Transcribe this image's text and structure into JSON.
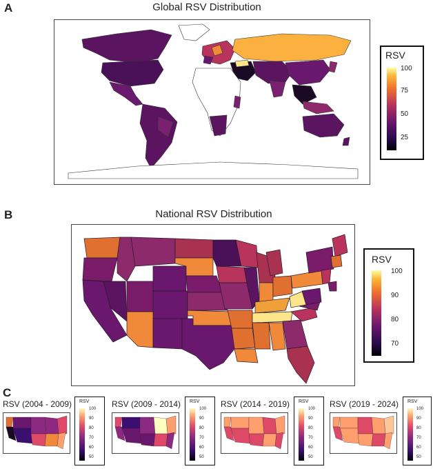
{
  "panels": {
    "a": {
      "letter": "A",
      "title": "Global RSV Distribution",
      "legend": {
        "title": "RSV",
        "ticks": [
          "100",
          "75",
          "50",
          "25"
        ]
      }
    },
    "b": {
      "letter": "B",
      "title": "National RSV Distribution",
      "legend": {
        "title": "RSV",
        "ticks": [
          "100",
          "90",
          "80",
          "70"
        ]
      }
    },
    "c": {
      "letter": "C",
      "maps": [
        {
          "title": "RSV (2004 - 2009)",
          "legend_title": "RSV",
          "ticks": [
            "100",
            "90",
            "80",
            "70",
            "60",
            "50"
          ]
        },
        {
          "title": "RSV (2009 - 2014)",
          "legend_title": "RSV",
          "ticks": [
            "100",
            "90",
            "80",
            "70",
            "60",
            "50"
          ]
        },
        {
          "title": "RSV (2014 - 2019)",
          "legend_title": "RSV",
          "ticks": [
            "100",
            "90",
            "80",
            "70",
            "60",
            "50"
          ]
        },
        {
          "title": "RSV (2019 - 2024)",
          "legend_title": "RSV",
          "ticks": [
            "100",
            "90",
            "80",
            "70",
            "60",
            "50"
          ]
        }
      ]
    }
  },
  "colors": {
    "scale_low": "#0d0887",
    "scale_dark": "#1a0a24",
    "scale_purple": "#5c1a6e",
    "scale_magenta": "#8c2a6b",
    "scale_red": "#c94a4a",
    "scale_orange": "#f08a3a",
    "scale_yellow": "#fde68a",
    "scale_high": "#fcfdbf"
  }
}
